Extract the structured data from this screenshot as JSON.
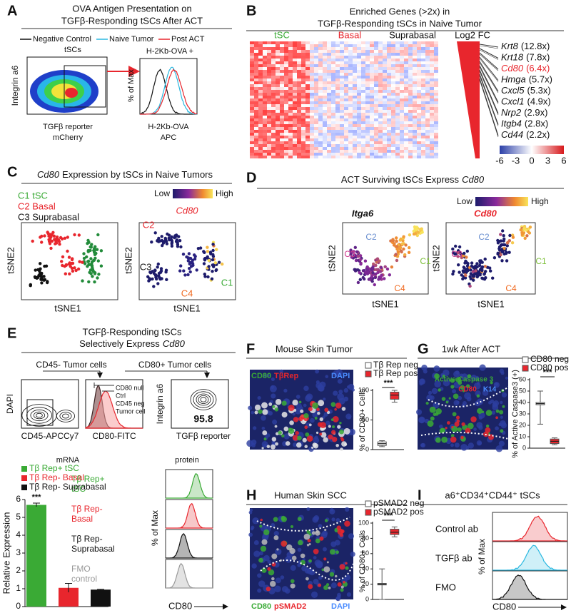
{
  "panels": {
    "A": {
      "letter": "A",
      "title": [
        "OVA Antigen Presentation on",
        "TGFβ-Responding tSCs After ACT"
      ],
      "legend": [
        "Negative Control",
        "Naive Tumor",
        "Post ACT"
      ],
      "gate": "tSCs",
      "y_label": "Integrin a6",
      "x_label": [
        "TGFβ reporter",
        "mCherry"
      ],
      "hist_title": "H-2Kb-OVA  +",
      "hist_y_label": "% of Max",
      "hist_x_label": [
        "H-2Kb-OVA",
        "APC"
      ]
    },
    "B": {
      "letter": "B",
      "title": [
        "Enriched Genes (>2x) in",
        "TGFβ-Responding tSCs in Naive Tumor"
      ],
      "groups": [
        "tSC",
        "Basal",
        "Suprabasal"
      ],
      "fc_label": "Log2 FC",
      "genes": [
        [
          "Krt8",
          "(12.8x)"
        ],
        [
          "Krt18",
          "(7.8x)"
        ],
        [
          "Cd80",
          "(6.4x)"
        ],
        [
          "Hmga",
          "(5.7x)"
        ],
        [
          "Cxcl5",
          "(5.3x)"
        ],
        [
          "Cxcl1",
          "(4.9x)"
        ],
        [
          "Nrp2",
          "(2.9x)"
        ],
        [
          "Itgb4",
          "(2.8x)"
        ],
        [
          "Cd44",
          "(2.2x)"
        ]
      ],
      "colorbar_ticks": [
        -6,
        -3,
        0,
        3,
        6
      ]
    },
    "C": {
      "letter": "C",
      "title_italic": "Cd80",
      "title": "Expression by tSCs in Naive Tumors",
      "clusters": [
        "C1 tSC",
        "C2 Basal",
        "C3 Suprabasal"
      ],
      "scale": [
        "Low",
        "High"
      ],
      "gene": "Cd80",
      "cluster_labels": [
        "C2",
        "C3",
        "C1",
        "C4"
      ],
      "axes": [
        "tSNE2",
        "tSNE1"
      ]
    },
    "D": {
      "letter": "D",
      "title": "ACT Surviving tSCs Express",
      "title_italic": "Cd80",
      "scale": [
        "Low",
        "High"
      ],
      "genes": [
        "Itga6",
        "Cd80"
      ],
      "cluster_labels": [
        "C2",
        "C3",
        "C1",
        "C4"
      ],
      "axes": [
        "tSNE2",
        "tSNE1"
      ]
    },
    "E": {
      "letter": "E",
      "title": [
        "TGFβ-Responding tSCs",
        "Selectively Express"
      ],
      "title_italic": "Cd80",
      "gates": [
        "CD45- Tumor cells",
        "CD80+ Tumor cells"
      ],
      "plot1": [
        "DAPI",
        "CD45-APCCy7"
      ],
      "plot2_legend": [
        "CD80 null",
        "Ctrl",
        "CD45 neg",
        "Tumor cell"
      ],
      "plot2_x": "CD80-FITC",
      "plot3": [
        "Integrin a6",
        "TGFβ reporter"
      ],
      "plot3_value": "95.8",
      "protein": {
        "title": "protein",
        "labels": [
          [
            "Tβ Rep+",
            "tSC"
          ],
          [
            "Tβ Rep-",
            "Basal"
          ],
          [
            "Tβ Rep-",
            "Suprabasal"
          ],
          [
            "FMO",
            "control"
          ]
        ],
        "y_label": "% of Max",
        "x_label": "CD80"
      }
    },
    "F": {
      "letter": "F",
      "title": "Mouse Skin Tumor",
      "stains": [
        "CD80",
        "TβRep",
        "DAPI"
      ]
    },
    "G": {
      "letter": "G",
      "title": "1wk After ACT",
      "stains": [
        "Active Caspase 3",
        "CD80",
        "K14"
      ]
    },
    "H": {
      "letter": "H",
      "title": "Human Skin SCC",
      "stains": [
        "CD80",
        "pSMAD2",
        "DAPI"
      ]
    },
    "I": {
      "letter": "I",
      "title": "a6⁺CD34⁺CD44⁺ tSCs",
      "conditions": [
        "Control ab",
        "TGFβ ab",
        "FMO"
      ],
      "y_label": "% of Max",
      "x_label": "CD80"
    }
  },
  "chart_data": [
    {
      "type": "bar",
      "title": "mRNA",
      "y_label": "Relative Expression",
      "annotation": "***",
      "ylim": [
        0,
        6
      ],
      "yticks": [
        0,
        1,
        2,
        3,
        4,
        5,
        6
      ],
      "series": [
        {
          "name": "Tβ Rep+ tSC",
          "color": "#3aaa35",
          "values": [
            5.7
          ],
          "errors": [
            0.1
          ]
        },
        {
          "name": "Tβ Rep- Basal",
          "color": "#e8262d",
          "values": [
            1.05
          ],
          "errors": [
            0.25
          ]
        },
        {
          "name": "Tβ Rep- Suprabasal",
          "color": "#111111",
          "values": [
            0.95
          ],
          "errors": [
            0.02
          ]
        }
      ]
    },
    {
      "type": "box",
      "y_label": "% of CD80+ Cells",
      "annotation": "***",
      "ylim": [
        0,
        100
      ],
      "yticks": [
        0,
        50,
        100
      ],
      "series": [
        {
          "name": "Tβ Rep neg",
          "color": "#ffffff",
          "whisker_low": 5,
          "q1": 7,
          "median": 10,
          "q3": 13,
          "whisker_high": 15
        },
        {
          "name": "Tβ Rep pos",
          "color": "#e8262d",
          "whisker_low": 80,
          "q1": 85,
          "median": 92,
          "q3": 97,
          "whisker_high": 100
        }
      ]
    },
    {
      "type": "box",
      "y_label": "% of Active Caspase3 (+)",
      "annotation": "***",
      "ylim": [
        0,
        60
      ],
      "yticks": [
        0,
        10,
        20,
        30,
        40,
        50,
        60
      ],
      "series": [
        {
          "name": "CD80 neg",
          "color": "#ffffff",
          "whisker_low": 21,
          "q1": 38,
          "median": 39,
          "q3": 40,
          "whisker_high": 50
        },
        {
          "name": "CD80 pos",
          "color": "#e8262d",
          "whisker_low": 3,
          "q1": 4,
          "median": 6,
          "q3": 8,
          "whisker_high": 9
        }
      ]
    },
    {
      "type": "box",
      "y_label": "% of CD80+ Cells",
      "annotation": "***",
      "ylim": [
        0,
        100
      ],
      "yticks": [
        0,
        20,
        40,
        60,
        80,
        100
      ],
      "series": [
        {
          "name": "pSMAD2 neg",
          "color": "#ffffff",
          "whisker_low": 0,
          "q1": 19,
          "median": 20,
          "q3": 21,
          "whisker_high": 40
        },
        {
          "name": "pSMAD2 pos",
          "color": "#e8262d",
          "whisker_low": 82,
          "q1": 85,
          "median": 88,
          "q3": 92,
          "whisker_high": 95
        }
      ]
    }
  ]
}
